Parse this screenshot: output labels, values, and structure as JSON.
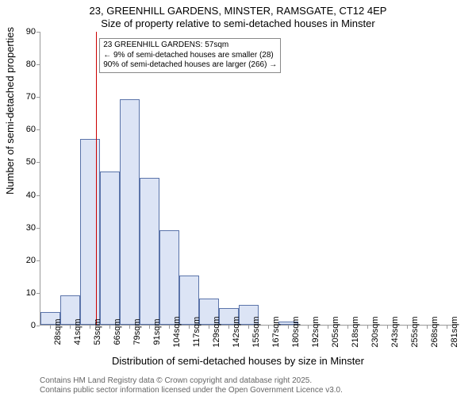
{
  "chart": {
    "type": "histogram",
    "title_line1": "23, GREENHILL GARDENS, MINSTER, RAMSGATE, CT12 4EP",
    "title_line2": "Size of property relative to semi-detached houses in Minster",
    "ylabel": "Number of semi-detached properties",
    "xlabel": "Distribution of semi-detached houses by size in Minster",
    "ylim": [
      0,
      90
    ],
    "ytick_step": 10,
    "categories": [
      "28sqm",
      "41sqm",
      "53sqm",
      "66sqm",
      "79sqm",
      "91sqm",
      "104sqm",
      "117sqm",
      "129sqm",
      "142sqm",
      "155sqm",
      "167sqm",
      "180sqm",
      "192sqm",
      "205sqm",
      "218sqm",
      "230sqm",
      "243sqm",
      "255sqm",
      "268sqm",
      "281sqm"
    ],
    "values": [
      4,
      9,
      57,
      47,
      69,
      45,
      29,
      15,
      8,
      5,
      6,
      0,
      1,
      0,
      0,
      0,
      0,
      0,
      0,
      0,
      0
    ],
    "bar_fill": "#dce4f5",
    "bar_border": "#5b74aa",
    "marker_value_sqm": 57,
    "marker_color": "#cc0000",
    "annotation": {
      "line1": "23 GREENHILL GARDENS: 57sqm",
      "line2": "← 9% of semi-detached houses are smaller (28)",
      "line3": "90% of semi-detached houses are larger (266) →"
    },
    "background_color": "#ffffff",
    "axis_color": "#999999",
    "text_color": "#000000",
    "title_fontsize": 13,
    "label_fontsize": 13,
    "tick_fontsize": 11
  },
  "footer": {
    "line1": "Contains HM Land Registry data © Crown copyright and database right 2025.",
    "line2": "Contains public sector information licensed under the Open Government Licence v3.0."
  }
}
